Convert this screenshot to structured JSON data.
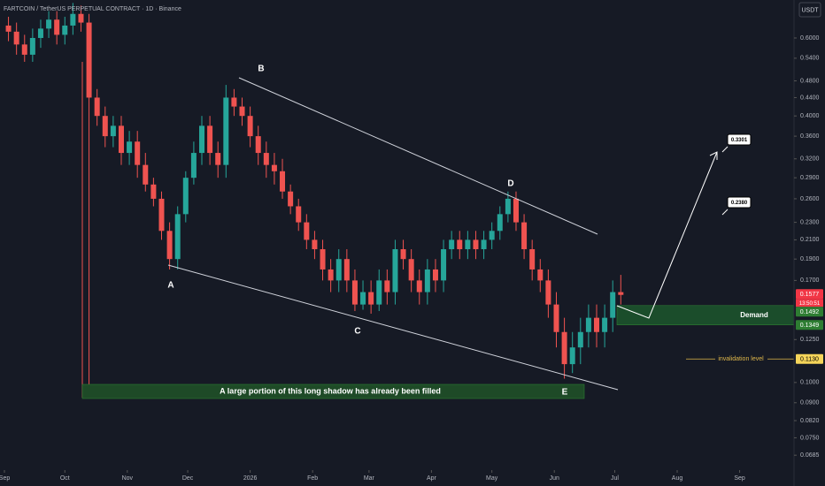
{
  "header": {
    "title": "FARTCOIN / TetherUS PERPETUAL CONTRACT · 1D · Binance",
    "currency": "USDT"
  },
  "chart_data": {
    "type": "candlestick",
    "x": [
      2,
      6,
      10,
      14,
      18,
      22,
      26,
      30,
      34,
      38,
      42,
      46,
      50,
      54,
      58,
      62,
      66,
      70,
      74,
      78,
      82,
      86,
      90,
      94,
      98,
      102,
      106,
      110,
      114,
      118,
      122,
      126,
      130,
      134,
      138,
      142,
      146,
      150,
      154,
      158,
      162,
      166,
      170,
      174,
      178,
      182,
      186,
      190,
      194,
      198,
      202,
      206,
      210,
      214,
      218,
      222,
      226,
      230,
      234,
      238,
      242,
      246,
      250,
      254,
      258,
      262,
      266,
      270,
      274,
      278,
      282,
      286,
      290,
      294,
      298,
      302,
      306
    ],
    "open": [
      0.64,
      0.62,
      0.58,
      0.55,
      0.6,
      0.63,
      0.66,
      0.61,
      0.64,
      0.68,
      0.65,
      0.44,
      0.4,
      0.36,
      0.38,
      0.33,
      0.35,
      0.31,
      0.28,
      0.26,
      0.22,
      0.19,
      0.24,
      0.29,
      0.33,
      0.38,
      0.33,
      0.31,
      0.44,
      0.42,
      0.4,
      0.36,
      0.33,
      0.31,
      0.3,
      0.27,
      0.25,
      0.23,
      0.21,
      0.2,
      0.18,
      0.17,
      0.19,
      0.17,
      0.15,
      0.16,
      0.15,
      0.17,
      0.16,
      0.2,
      0.19,
      0.17,
      0.16,
      0.18,
      0.17,
      0.2,
      0.21,
      0.2,
      0.21,
      0.2,
      0.21,
      0.22,
      0.24,
      0.26,
      0.23,
      0.2,
      0.18,
      0.17,
      0.15,
      0.13,
      0.11,
      0.12,
      0.13,
      0.14,
      0.13,
      0.14,
      0.16
    ],
    "high": [
      0.67,
      0.65,
      0.61,
      0.63,
      0.66,
      0.69,
      0.69,
      0.67,
      0.72,
      0.71,
      0.68,
      0.46,
      0.42,
      0.4,
      0.4,
      0.37,
      0.37,
      0.33,
      0.29,
      0.27,
      0.23,
      0.25,
      0.3,
      0.35,
      0.4,
      0.4,
      0.35,
      0.47,
      0.46,
      0.44,
      0.42,
      0.38,
      0.35,
      0.33,
      0.32,
      0.28,
      0.26,
      0.24,
      0.22,
      0.21,
      0.19,
      0.2,
      0.2,
      0.18,
      0.17,
      0.17,
      0.18,
      0.18,
      0.21,
      0.21,
      0.2,
      0.18,
      0.19,
      0.19,
      0.21,
      0.22,
      0.22,
      0.22,
      0.22,
      0.22,
      0.23,
      0.25,
      0.27,
      0.27,
      0.24,
      0.21,
      0.19,
      0.18,
      0.16,
      0.14,
      0.13,
      0.14,
      0.15,
      0.15,
      0.15,
      0.17,
      0.175
    ],
    "low": [
      0.59,
      0.55,
      0.53,
      0.53,
      0.57,
      0.6,
      0.58,
      0.58,
      0.61,
      0.62,
      0.093,
      0.38,
      0.34,
      0.34,
      0.31,
      0.31,
      0.29,
      0.27,
      0.25,
      0.21,
      0.18,
      0.18,
      0.23,
      0.28,
      0.31,
      0.31,
      0.29,
      0.29,
      0.4,
      0.38,
      0.34,
      0.31,
      0.29,
      0.28,
      0.26,
      0.24,
      0.22,
      0.2,
      0.19,
      0.17,
      0.16,
      0.16,
      0.16,
      0.145,
      0.146,
      0.143,
      0.145,
      0.15,
      0.15,
      0.18,
      0.16,
      0.15,
      0.15,
      0.16,
      0.16,
      0.19,
      0.19,
      0.19,
      0.19,
      0.19,
      0.2,
      0.21,
      0.23,
      0.22,
      0.19,
      0.17,
      0.16,
      0.14,
      0.12,
      0.102,
      0.105,
      0.11,
      0.12,
      0.12,
      0.12,
      0.13,
      0.15
    ],
    "close": [
      0.62,
      0.58,
      0.55,
      0.6,
      0.63,
      0.66,
      0.61,
      0.64,
      0.68,
      0.65,
      0.44,
      0.4,
      0.36,
      0.38,
      0.33,
      0.35,
      0.31,
      0.28,
      0.26,
      0.22,
      0.19,
      0.24,
      0.29,
      0.33,
      0.38,
      0.33,
      0.31,
      0.44,
      0.42,
      0.4,
      0.36,
      0.33,
      0.31,
      0.3,
      0.27,
      0.25,
      0.23,
      0.21,
      0.2,
      0.18,
      0.17,
      0.19,
      0.17,
      0.15,
      0.16,
      0.15,
      0.17,
      0.16,
      0.2,
      0.19,
      0.17,
      0.16,
      0.18,
      0.17,
      0.2,
      0.21,
      0.2,
      0.21,
      0.2,
      0.21,
      0.22,
      0.24,
      0.26,
      0.23,
      0.2,
      0.18,
      0.17,
      0.15,
      0.13,
      0.11,
      0.12,
      0.13,
      0.14,
      0.13,
      0.14,
      0.16,
      0.1577
    ],
    "up_color": "#26a69a",
    "down_color": "#ef5350",
    "xlim": [
      -2.2,
      392
    ],
    "xticks": [
      {
        "value": 0,
        "label": "Sep"
      },
      {
        "value": 30,
        "label": "Oct"
      },
      {
        "value": 61,
        "label": "Nov"
      },
      {
        "value": 91,
        "label": "Dec"
      },
      {
        "value": 122,
        "label": "2026"
      },
      {
        "value": 153,
        "label": "Feb"
      },
      {
        "value": 181,
        "label": "Mar"
      },
      {
        "value": 212,
        "label": "Apr"
      },
      {
        "value": 242,
        "label": "May"
      },
      {
        "value": 273,
        "label": "Jun"
      },
      {
        "value": 303,
        "label": "Jul"
      },
      {
        "value": 334,
        "label": "Aug"
      },
      {
        "value": 365,
        "label": "Sep"
      }
    ],
    "ylim": [
      0.0634,
      0.731
    ],
    "log_scale": true,
    "yticks": [
      {
        "value": 0.6,
        "label": "0.6000"
      },
      {
        "value": 0.54,
        "label": "0.5400"
      },
      {
        "value": 0.48,
        "label": "0.4800"
      },
      {
        "value": 0.44,
        "label": "0.4400"
      },
      {
        "value": 0.4,
        "label": "0.4000"
      },
      {
        "value": 0.36,
        "label": "0.3600"
      },
      {
        "value": 0.32,
        "label": "0.3200"
      },
      {
        "value": 0.29,
        "label": "0.2900"
      },
      {
        "value": 0.26,
        "label": "0.2600"
      },
      {
        "value": 0.23,
        "label": "0.2300"
      },
      {
        "value": 0.21,
        "label": "0.2100"
      },
      {
        "value": 0.19,
        "label": "0.1900"
      },
      {
        "value": 0.17,
        "label": "0.1700"
      },
      {
        "value": 0.125,
        "label": "0.1250"
      },
      {
        "value": 0.1,
        "label": "0.1000"
      },
      {
        "value": 0.09,
        "label": "0.0900"
      },
      {
        "value": 0.082,
        "label": "0.0820"
      },
      {
        "value": 0.075,
        "label": "0.0750"
      },
      {
        "value": 0.0685,
        "label": "0.0685"
      }
    ],
    "last_price": 0.1577,
    "countdown": "13:50:51",
    "demand_zone": [
      0.1349,
      0.1492
    ],
    "invalidation_level": {
      "value": 0.113,
      "label": "0.1130"
    },
    "annotations": {
      "points": [
        "A",
        "B",
        "C",
        "D",
        "E"
      ],
      "demand": "Demand",
      "invalidation": "invalidation level",
      "shadow_note": "A large portion of this long shadow has already been filled",
      "targets": [
        0.3301,
        {
          "value": 0.238,
          "label": "0.2380"
        }
      ]
    }
  }
}
